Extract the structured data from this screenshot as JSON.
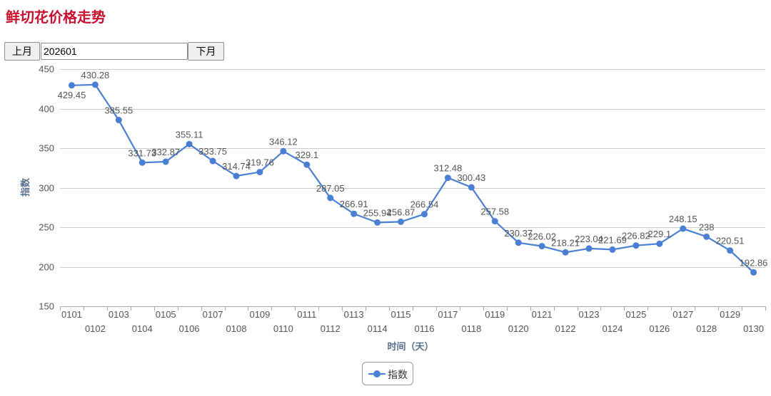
{
  "page_title": "鲜切花价格走势",
  "controls": {
    "prev_label": "上月",
    "next_label": "下月",
    "month_value": "202601"
  },
  "colors": {
    "title": "#c8102e",
    "series": "#4a7fd4",
    "grid": "#cccccc",
    "axis_title": "#5a6f8f"
  },
  "legend_icon": "line-with-circle-marker",
  "chart_data": {
    "type": "line",
    "title": "",
    "xlabel": "时间（天）",
    "ylabel": "指数",
    "ylim": [
      150,
      450
    ],
    "yticks": [
      150,
      200,
      250,
      300,
      350,
      400,
      450
    ],
    "grid": true,
    "legend_position": "bottom-center",
    "categories": [
      "0101",
      "0102",
      "0103",
      "0104",
      "0105",
      "0106",
      "0107",
      "0108",
      "0109",
      "0110",
      "0111",
      "0112",
      "0113",
      "0114",
      "0115",
      "0116",
      "0117",
      "0118",
      "0119",
      "0120",
      "0121",
      "0122",
      "0123",
      "0124",
      "0125",
      "0126",
      "0127",
      "0128",
      "0129",
      "0130"
    ],
    "series": [
      {
        "name": "指数",
        "values": [
          429.45,
          430.28,
          385.55,
          331.73,
          332.87,
          355.11,
          333.75,
          314.74,
          319.76,
          346.12,
          329.1,
          287.05,
          266.91,
          255.94,
          256.87,
          266.54,
          312.48,
          300.43,
          257.58,
          230.37,
          226.02,
          218.21,
          223.04,
          221.69,
          226.82,
          229.1,
          248.15,
          238,
          220.51,
          192.86
        ],
        "labels": [
          "429.45",
          "430.28",
          "385.55",
          "331.73",
          "332.87",
          "355.11",
          "333.75",
          "314.74",
          "319.76",
          "346.12",
          "329.1",
          "287.05",
          "266.91",
          "255.94",
          "256.87",
          "266.54",
          "312.48",
          "300.43",
          "257.58",
          "230.37",
          "226.02",
          "218.21",
          "223.04",
          "221.69",
          "226.82",
          "229.1",
          "248.15",
          "238",
          "220.51",
          "192.86"
        ]
      }
    ]
  }
}
